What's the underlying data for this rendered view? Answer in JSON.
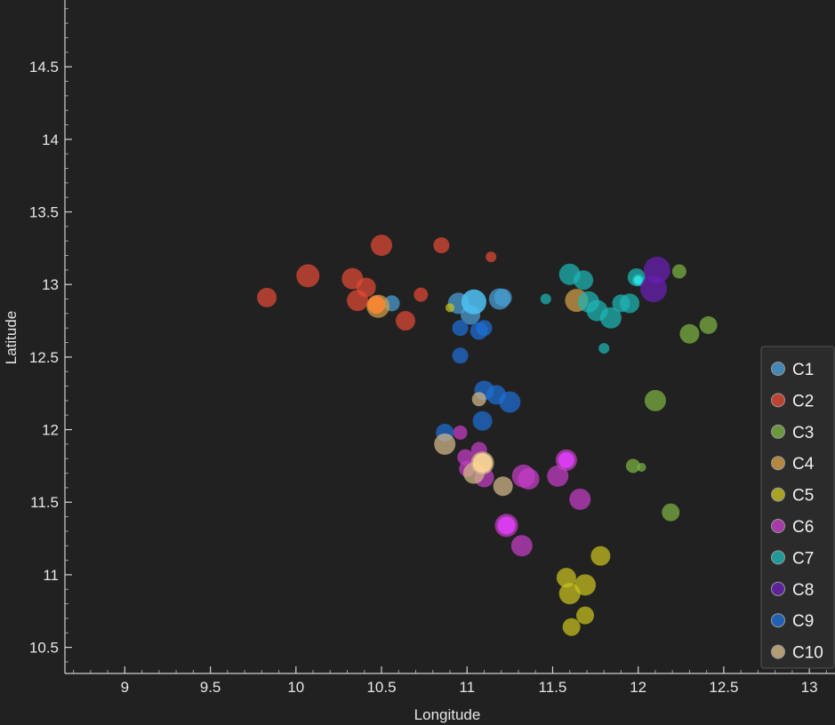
{
  "chart_data": {
    "type": "scatter",
    "title": "",
    "xlabel": "Longitude",
    "ylabel": "Latitude",
    "xlim": [
      8.65,
      13.15
    ],
    "ylim": [
      10.32,
      14.96
    ],
    "x_ticks": [
      9,
      9.5,
      10,
      10.5,
      11,
      11.5,
      12,
      12.5,
      13
    ],
    "x_tick_labels": [
      "9",
      "9.5",
      "10",
      "10.5",
      "11",
      "11.5",
      "12",
      "12.5",
      "13"
    ],
    "y_ticks": [
      10.5,
      11,
      11.5,
      12,
      12.5,
      13,
      13.5,
      14,
      14.5
    ],
    "y_tick_labels": [
      "10.5",
      "11",
      "11.5",
      "12",
      "12.5",
      "13",
      "13.5",
      "14",
      "14.5"
    ],
    "grid": false,
    "legend_position": "bottom-right",
    "series": [
      {
        "name": "C1",
        "color": "#4a9fd6",
        "points": [
          {
            "x": 10.56,
            "y": 12.87,
            "r": 9
          },
          {
            "x": 10.95,
            "y": 12.87,
            "r": 12
          },
          {
            "x": 11.02,
            "y": 12.79,
            "r": 11
          },
          {
            "x": 11.19,
            "y": 12.9,
            "r": 12
          },
          {
            "x": 11.21,
            "y": 12.91,
            "r": 10
          }
        ]
      },
      {
        "name": "C2",
        "color": "#e14a35",
        "points": [
          {
            "x": 9.83,
            "y": 12.91,
            "r": 11
          },
          {
            "x": 10.07,
            "y": 13.06,
            "r": 13
          },
          {
            "x": 10.33,
            "y": 13.04,
            "r": 12
          },
          {
            "x": 10.36,
            "y": 12.89,
            "r": 12
          },
          {
            "x": 10.41,
            "y": 12.98,
            "r": 11
          },
          {
            "x": 10.5,
            "y": 13.27,
            "r": 12
          },
          {
            "x": 10.64,
            "y": 12.75,
            "r": 11
          },
          {
            "x": 10.73,
            "y": 12.93,
            "r": 8
          },
          {
            "x": 10.85,
            "y": 13.27,
            "r": 9
          },
          {
            "x": 11.14,
            "y": 13.19,
            "r": 6
          }
        ]
      },
      {
        "name": "C3",
        "color": "#7cb342",
        "points": [
          {
            "x": 12.24,
            "y": 13.09,
            "r": 8
          },
          {
            "x": 12.41,
            "y": 12.72,
            "r": 10
          },
          {
            "x": 12.3,
            "y": 12.66,
            "r": 11
          },
          {
            "x": 12.1,
            "y": 12.2,
            "r": 12
          },
          {
            "x": 11.97,
            "y": 11.75,
            "r": 8
          },
          {
            "x": 12.02,
            "y": 11.74,
            "r": 5
          },
          {
            "x": 12.19,
            "y": 11.43,
            "r": 10
          }
        ]
      },
      {
        "name": "C4",
        "color": "#d4a046",
        "points": [
          {
            "x": 10.48,
            "y": 12.85,
            "r": 13
          },
          {
            "x": 11.64,
            "y": 12.89,
            "r": 13
          }
        ]
      },
      {
        "name": "C5",
        "color": "#c8c21e",
        "points": [
          {
            "x": 10.9,
            "y": 12.84,
            "r": 5
          },
          {
            "x": 11.78,
            "y": 11.13,
            "r": 11
          },
          {
            "x": 11.58,
            "y": 10.98,
            "r": 11
          },
          {
            "x": 11.6,
            "y": 10.87,
            "r": 12
          },
          {
            "x": 11.69,
            "y": 10.93,
            "r": 12
          },
          {
            "x": 11.69,
            "y": 10.72,
            "r": 10
          },
          {
            "x": 11.61,
            "y": 10.64,
            "r": 10
          }
        ]
      },
      {
        "name": "C6",
        "color": "#c53fc6",
        "points": [
          {
            "x": 10.96,
            "y": 11.98,
            "r": 8
          },
          {
            "x": 10.99,
            "y": 11.81,
            "r": 9
          },
          {
            "x": 11.07,
            "y": 11.86,
            "r": 9
          },
          {
            "x": 11.0,
            "y": 11.73,
            "r": 9
          },
          {
            "x": 11.1,
            "y": 11.67,
            "r": 11
          },
          {
            "x": 11.33,
            "y": 11.68,
            "r": 13
          },
          {
            "x": 11.36,
            "y": 11.66,
            "r": 12
          },
          {
            "x": 11.53,
            "y": 11.68,
            "r": 12
          },
          {
            "x": 11.58,
            "y": 11.79,
            "r": 12
          },
          {
            "x": 11.66,
            "y": 11.52,
            "r": 12
          },
          {
            "x": 11.23,
            "y": 11.34,
            "r": 13
          },
          {
            "x": 11.32,
            "y": 11.2,
            "r": 12
          }
        ]
      },
      {
        "name": "C7",
        "color": "#1fb5b5",
        "points": [
          {
            "x": 11.46,
            "y": 12.9,
            "r": 6
          },
          {
            "x": 11.6,
            "y": 13.07,
            "r": 12
          },
          {
            "x": 11.68,
            "y": 13.03,
            "r": 11
          },
          {
            "x": 11.71,
            "y": 12.88,
            "r": 12
          },
          {
            "x": 11.76,
            "y": 12.82,
            "r": 12
          },
          {
            "x": 11.84,
            "y": 12.77,
            "r": 12
          },
          {
            "x": 11.9,
            "y": 12.87,
            "r": 10
          },
          {
            "x": 11.95,
            "y": 12.87,
            "r": 11
          },
          {
            "x": 11.8,
            "y": 12.56,
            "r": 6
          },
          {
            "x": 11.99,
            "y": 13.05,
            "r": 10
          },
          {
            "x": 12.0,
            "y": 13.03,
            "r": 7
          }
        ]
      },
      {
        "name": "C8",
        "color": "#6a1fb5",
        "points": [
          {
            "x": 12.11,
            "y": 13.1,
            "r": 15
          },
          {
            "x": 12.09,
            "y": 12.97,
            "r": 15
          }
        ]
      },
      {
        "name": "C9",
        "color": "#1e6fd6",
        "points": [
          {
            "x": 10.96,
            "y": 12.7,
            "r": 9
          },
          {
            "x": 11.07,
            "y": 12.68,
            "r": 10
          },
          {
            "x": 11.1,
            "y": 12.7,
            "r": 9
          },
          {
            "x": 10.96,
            "y": 12.51,
            "r": 9
          },
          {
            "x": 11.1,
            "y": 12.27,
            "r": 11
          },
          {
            "x": 11.17,
            "y": 12.24,
            "r": 11
          },
          {
            "x": 11.25,
            "y": 12.19,
            "r": 12
          },
          {
            "x": 11.09,
            "y": 12.06,
            "r": 11
          },
          {
            "x": 10.87,
            "y": 11.98,
            "r": 10
          }
        ]
      },
      {
        "name": "C10",
        "color": "#d4b98a",
        "points": [
          {
            "x": 11.07,
            "y": 12.21,
            "r": 8
          },
          {
            "x": 10.87,
            "y": 11.9,
            "r": 12
          },
          {
            "x": 11.09,
            "y": 11.77,
            "r": 13
          },
          {
            "x": 11.04,
            "y": 11.7,
            "r": 12
          },
          {
            "x": 11.21,
            "y": 11.61,
            "r": 11
          }
        ]
      }
    ],
    "highlights": [
      {
        "x": 11.04,
        "y": 12.88,
        "r": 14,
        "color": "#4fc3f7"
      },
      {
        "x": 10.47,
        "y": 12.86,
        "r": 10,
        "color": "#ff8a30"
      },
      {
        "x": 11.09,
        "y": 11.77,
        "r": 11,
        "color": "#ffd89a"
      },
      {
        "x": 11.58,
        "y": 11.79,
        "r": 9,
        "color": "#e040fb"
      },
      {
        "x": 11.23,
        "y": 11.34,
        "r": 10,
        "color": "#e040fb"
      },
      {
        "x": 12.0,
        "y": 13.03,
        "r": 5,
        "color": "#2ee6e6"
      }
    ]
  }
}
